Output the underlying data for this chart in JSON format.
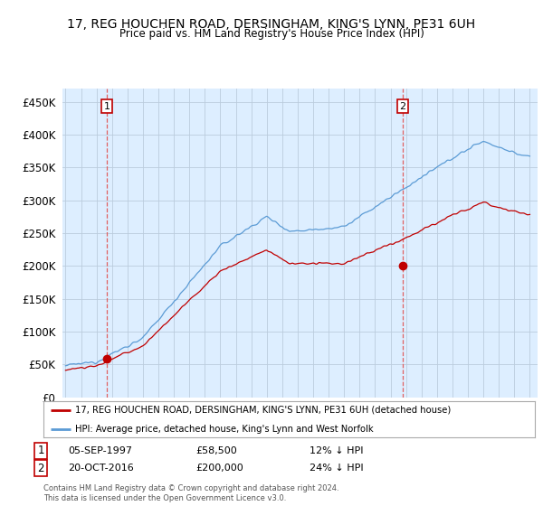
{
  "title": "17, REG HOUCHEN ROAD, DERSINGHAM, KING'S LYNN, PE31 6UH",
  "subtitle": "Price paid vs. HM Land Registry's House Price Index (HPI)",
  "hpi_label": "HPI: Average price, detached house, King's Lynn and West Norfolk",
  "property_label": "17, REG HOUCHEN ROAD, DERSINGHAM, KING'S LYNN, PE31 6UH (detached house)",
  "sale1_date": "05-SEP-1997",
  "sale1_price": 58500,
  "sale1_hpi_pct": "12% ↓ HPI",
  "sale2_date": "20-OCT-2016",
  "sale2_price": 200000,
  "sale2_hpi_pct": "24% ↓ HPI",
  "ylabel_ticks": [
    "£0",
    "£50K",
    "£100K",
    "£150K",
    "£200K",
    "£250K",
    "£300K",
    "£350K",
    "£400K",
    "£450K"
  ],
  "ytick_values": [
    0,
    50000,
    100000,
    150000,
    200000,
    250000,
    300000,
    350000,
    400000,
    450000
  ],
  "ylim": [
    0,
    470000
  ],
  "hpi_color": "#5b9bd5",
  "property_color": "#c00000",
  "vline_color": "#e06060",
  "chart_bg": "#ddeeff",
  "background_color": "#ffffff",
  "grid_color": "#bbccdd",
  "footer_text": "Contains HM Land Registry data © Crown copyright and database right 2024.\nThis data is licensed under the Open Government Licence v3.0.",
  "sale1_x_year": 1997.67,
  "sale2_x_year": 2016.79,
  "xlim_left": 1994.8,
  "xlim_right": 2025.5
}
